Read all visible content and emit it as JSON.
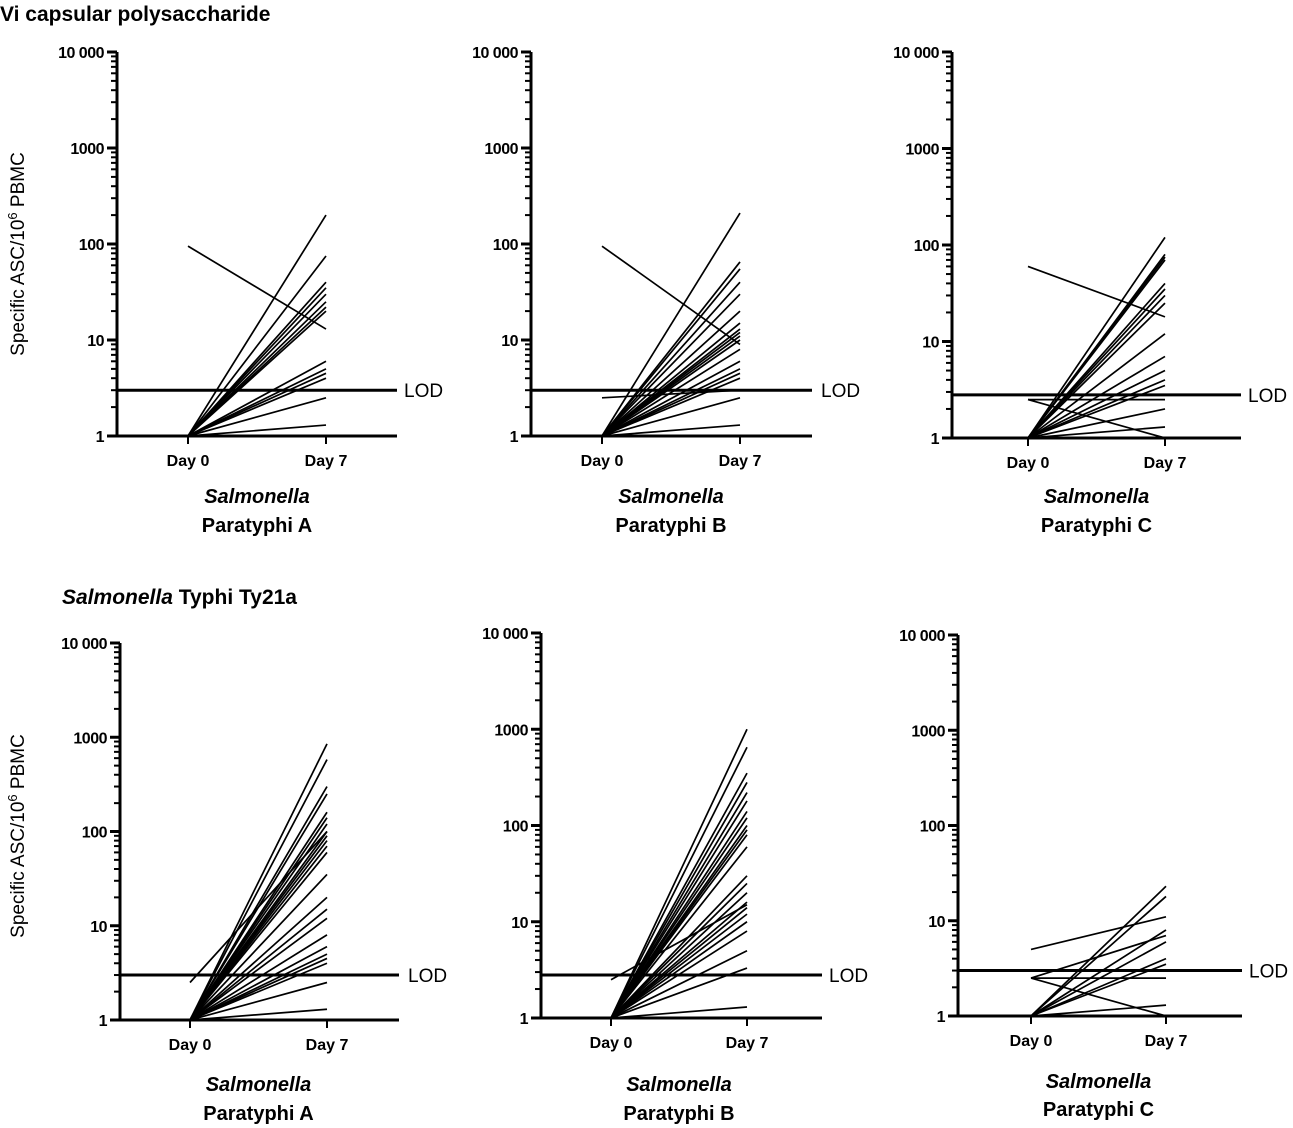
{
  "sections": [
    {
      "title_bold": "Vi capsular polysaccharide",
      "title_italic": "",
      "title_rest": ""
    },
    {
      "title_bold": "",
      "title_italic": "Salmonella",
      "title_rest": " Typhi Ty21a"
    }
  ],
  "y_axis_label": "Specific ASC/10",
  "y_axis_label_sup": "6",
  "y_axis_label_tail": " PBMC",
  "lod_label": "LOD",
  "chart_data": [
    {
      "type": "line",
      "section": 0,
      "subtitle_italic": "Salmonella",
      "subtitle": "Paratyphi A",
      "categories": [
        "Day 0",
        "Day 7"
      ],
      "yscale": "log",
      "ylim": [
        1,
        10000
      ],
      "yticks": [
        1,
        10,
        100,
        1000,
        10000
      ],
      "ytick_labels": [
        "1",
        "10",
        "100",
        "1000",
        "10 000"
      ],
      "lod": 3,
      "series": [
        {
          "values": [
            95,
            13
          ]
        },
        {
          "values": [
            1,
            200
          ]
        },
        {
          "values": [
            1,
            75
          ]
        },
        {
          "values": [
            1,
            40
          ]
        },
        {
          "values": [
            1,
            35
          ]
        },
        {
          "values": [
            1,
            30
          ]
        },
        {
          "values": [
            1,
            25
          ]
        },
        {
          "values": [
            1,
            22
          ]
        },
        {
          "values": [
            1,
            20
          ]
        },
        {
          "values": [
            1,
            6
          ]
        },
        {
          "values": [
            1,
            5
          ]
        },
        {
          "values": [
            1,
            4.5
          ]
        },
        {
          "values": [
            1,
            4
          ]
        },
        {
          "values": [
            1,
            2.5
          ]
        },
        {
          "values": [
            1,
            1.3
          ]
        },
        {
          "values": [
            1,
            1
          ]
        }
      ]
    },
    {
      "type": "line",
      "section": 0,
      "subtitle_italic": "Salmonella",
      "subtitle": "Paratyphi B",
      "categories": [
        "Day 0",
        "Day 7"
      ],
      "yscale": "log",
      "ylim": [
        1,
        10000
      ],
      "yticks": [
        1,
        10,
        100,
        1000,
        10000
      ],
      "ytick_labels": [
        "1",
        "10",
        "100",
        "1000",
        "10 000"
      ],
      "lod": 3,
      "series": [
        {
          "values": [
            95,
            9
          ]
        },
        {
          "values": [
            2.5,
            3
          ]
        },
        {
          "values": [
            1,
            210
          ]
        },
        {
          "values": [
            1,
            65
          ]
        },
        {
          "values": [
            1,
            55
          ]
        },
        {
          "values": [
            1,
            40
          ]
        },
        {
          "values": [
            1,
            30
          ]
        },
        {
          "values": [
            1,
            20
          ]
        },
        {
          "values": [
            1,
            15
          ]
        },
        {
          "values": [
            1,
            13
          ]
        },
        {
          "values": [
            1,
            12
          ]
        },
        {
          "values": [
            1,
            11
          ]
        },
        {
          "values": [
            1,
            10
          ]
        },
        {
          "values": [
            1,
            8
          ]
        },
        {
          "values": [
            1,
            6
          ]
        },
        {
          "values": [
            1,
            5
          ]
        },
        {
          "values": [
            1,
            4.5
          ]
        },
        {
          "values": [
            1,
            4
          ]
        },
        {
          "values": [
            1,
            2.5
          ]
        },
        {
          "values": [
            1,
            1.3
          ]
        },
        {
          "values": [
            1,
            1
          ]
        }
      ]
    },
    {
      "type": "line",
      "section": 0,
      "subtitle_italic": "Salmonella",
      "subtitle": "Paratyphi C",
      "categories": [
        "Day 0",
        "Day 7"
      ],
      "yscale": "log",
      "ylim": [
        1,
        10000
      ],
      "yticks": [
        1,
        10,
        100,
        1000,
        10000
      ],
      "ytick_labels": [
        "1",
        "10",
        "100",
        "1000",
        "10 000"
      ],
      "lod": 2.8,
      "series": [
        {
          "values": [
            60,
            18
          ]
        },
        {
          "values": [
            2.5,
            1
          ]
        },
        {
          "values": [
            2.5,
            2.5
          ]
        },
        {
          "values": [
            1,
            120
          ]
        },
        {
          "values": [
            1,
            80
          ]
        },
        {
          "values": [
            1,
            75
          ]
        },
        {
          "values": [
            1,
            70
          ]
        },
        {
          "values": [
            1,
            40
          ]
        },
        {
          "values": [
            1,
            35
          ]
        },
        {
          "values": [
            1,
            30
          ]
        },
        {
          "values": [
            1,
            25
          ]
        },
        {
          "values": [
            1,
            12
          ]
        },
        {
          "values": [
            1,
            7
          ]
        },
        {
          "values": [
            1,
            5
          ]
        },
        {
          "values": [
            1,
            4
          ]
        },
        {
          "values": [
            1,
            3.5
          ]
        },
        {
          "values": [
            1,
            2
          ]
        },
        {
          "values": [
            1,
            1.3
          ]
        },
        {
          "values": [
            1,
            1
          ]
        }
      ]
    },
    {
      "type": "line",
      "section": 1,
      "subtitle_italic": "Salmonella",
      "subtitle": "Paratyphi  A",
      "categories": [
        "Day 0",
        "Day 7"
      ],
      "yscale": "log",
      "ylim": [
        1,
        10000
      ],
      "yticks": [
        1,
        10,
        100,
        1000,
        10000
      ],
      "ytick_labels": [
        "1",
        "10",
        "100",
        "1000",
        "10 000"
      ],
      "lod": 3,
      "series": [
        {
          "values": [
            2.5,
            100
          ]
        },
        {
          "values": [
            1,
            850
          ]
        },
        {
          "values": [
            1,
            580
          ]
        },
        {
          "values": [
            1,
            300
          ]
        },
        {
          "values": [
            1,
            250
          ]
        },
        {
          "values": [
            1,
            160
          ]
        },
        {
          "values": [
            1,
            140
          ]
        },
        {
          "values": [
            1,
            120
          ]
        },
        {
          "values": [
            1,
            100
          ]
        },
        {
          "values": [
            1,
            90
          ]
        },
        {
          "values": [
            1,
            80
          ]
        },
        {
          "values": [
            1,
            70
          ]
        },
        {
          "values": [
            1,
            60
          ]
        },
        {
          "values": [
            1,
            35
          ]
        },
        {
          "values": [
            1,
            20
          ]
        },
        {
          "values": [
            1,
            15
          ]
        },
        {
          "values": [
            1,
            12
          ]
        },
        {
          "values": [
            1,
            8
          ]
        },
        {
          "values": [
            1,
            6
          ]
        },
        {
          "values": [
            1,
            5
          ]
        },
        {
          "values": [
            1,
            4.5
          ]
        },
        {
          "values": [
            1,
            4
          ]
        },
        {
          "values": [
            1,
            2.5
          ]
        },
        {
          "values": [
            1,
            1.3
          ]
        },
        {
          "values": [
            1,
            1
          ]
        }
      ]
    },
    {
      "type": "line",
      "section": 1,
      "subtitle_italic": "Salmonella",
      "subtitle": "Paratyphi B",
      "categories": [
        "Day 0",
        "Day 7"
      ],
      "yscale": "log",
      "ylim": [
        1,
        10000
      ],
      "yticks": [
        1,
        10,
        100,
        1000,
        10000
      ],
      "ytick_labels": [
        "1",
        "10",
        "100",
        "1000",
        "10 000"
      ],
      "lod": 2.8,
      "series": [
        {
          "values": [
            2.5,
            15
          ]
        },
        {
          "values": [
            1,
            1000
          ]
        },
        {
          "values": [
            1,
            650
          ]
        },
        {
          "values": [
            1,
            350
          ]
        },
        {
          "values": [
            1,
            280
          ]
        },
        {
          "values": [
            1,
            220
          ]
        },
        {
          "values": [
            1,
            180
          ]
        },
        {
          "values": [
            1,
            140
          ]
        },
        {
          "values": [
            1,
            120
          ]
        },
        {
          "values": [
            1,
            100
          ]
        },
        {
          "values": [
            1,
            90
          ]
        },
        {
          "values": [
            1,
            80
          ]
        },
        {
          "values": [
            1,
            60
          ]
        },
        {
          "values": [
            1,
            30
          ]
        },
        {
          "values": [
            1,
            25
          ]
        },
        {
          "values": [
            1,
            20
          ]
        },
        {
          "values": [
            1,
            16
          ]
        },
        {
          "values": [
            1,
            14
          ]
        },
        {
          "values": [
            1,
            12
          ]
        },
        {
          "values": [
            1,
            10
          ]
        },
        {
          "values": [
            1,
            8
          ]
        },
        {
          "values": [
            1,
            5
          ]
        },
        {
          "values": [
            1,
            3.3
          ]
        },
        {
          "values": [
            1,
            1.3
          ]
        },
        {
          "values": [
            1,
            1
          ]
        }
      ]
    },
    {
      "type": "line",
      "section": 1,
      "subtitle_italic": "Salmonella",
      "subtitle": "Paratyphi C",
      "categories": [
        "Day 0",
        "Day 7"
      ],
      "yscale": "log",
      "ylim": [
        1,
        10000
      ],
      "yticks": [
        1,
        10,
        100,
        1000,
        10000
      ],
      "ytick_labels": [
        "1",
        "10",
        "100",
        "1000",
        "10 000"
      ],
      "lod": 3,
      "series": [
        {
          "values": [
            5,
            11
          ]
        },
        {
          "values": [
            2.5,
            1
          ]
        },
        {
          "values": [
            2.5,
            2.5
          ]
        },
        {
          "values": [
            2.5,
            7
          ]
        },
        {
          "values": [
            1,
            23
          ]
        },
        {
          "values": [
            1,
            18
          ]
        },
        {
          "values": [
            1,
            8
          ]
        },
        {
          "values": [
            1,
            6
          ]
        },
        {
          "values": [
            1,
            4
          ]
        },
        {
          "values": [
            1,
            3.5
          ]
        },
        {
          "values": [
            1,
            1.3
          ]
        },
        {
          "values": [
            1,
            1
          ]
        }
      ]
    }
  ]
}
